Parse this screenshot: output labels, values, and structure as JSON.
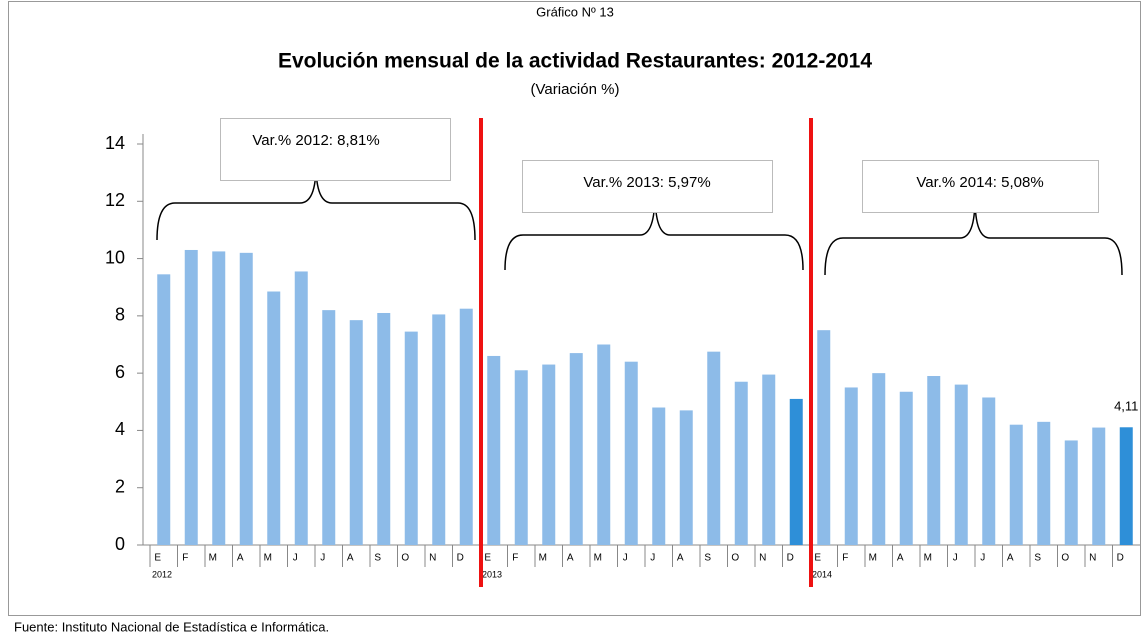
{
  "chart_data": {
    "type": "bar",
    "pretitle": "Gráfico Nº 13",
    "title": "Evolución mensual  de la actividad  Restaurantes: 2012-2014",
    "subtitle": "(Variación %)",
    "categories": [
      "E",
      "F",
      "M",
      "A",
      "M",
      "J",
      "J",
      "A",
      "S",
      "O",
      "N",
      "D",
      "E",
      "F",
      "M",
      "A",
      "M",
      "J",
      "J",
      "A",
      "S",
      "O",
      "N",
      "D",
      "E",
      "F",
      "M",
      "A",
      "M",
      "J",
      "J",
      "A",
      "S",
      "O",
      "N",
      "D"
    ],
    "year_labels": [
      "2012",
      "2013",
      "2014"
    ],
    "values": [
      9.45,
      10.3,
      10.25,
      10.2,
      8.85,
      9.55,
      8.2,
      7.85,
      8.1,
      7.45,
      8.05,
      8.25,
      6.6,
      6.1,
      6.3,
      6.7,
      7.0,
      6.4,
      4.8,
      4.7,
      6.75,
      5.7,
      5.95,
      5.1,
      7.5,
      5.5,
      6.0,
      5.35,
      5.9,
      5.6,
      5.15,
      4.2,
      4.3,
      3.65,
      4.1,
      4.11
    ],
    "value_labels": [
      null,
      null,
      null,
      null,
      null,
      null,
      null,
      null,
      null,
      null,
      null,
      null,
      null,
      null,
      null,
      null,
      null,
      null,
      null,
      null,
      null,
      null,
      null,
      null,
      null,
      null,
      null,
      null,
      null,
      null,
      null,
      null,
      null,
      null,
      null,
      "4,11"
    ],
    "colors": [
      "#8dbbe8",
      "#8dbbe8",
      "#8dbbe8",
      "#8dbbe8",
      "#8dbbe8",
      "#8dbbe8",
      "#8dbbe8",
      "#8dbbe8",
      "#8dbbe8",
      "#8dbbe8",
      "#8dbbe8",
      "#8dbbe8",
      "#8dbbe8",
      "#8dbbe8",
      "#8dbbe8",
      "#8dbbe8",
      "#8dbbe8",
      "#8dbbe8",
      "#8dbbe8",
      "#8dbbe8",
      "#8dbbe8",
      "#8dbbe8",
      "#8dbbe8",
      "#2e8fd8",
      "#8dbbe8",
      "#8dbbe8",
      "#8dbbe8",
      "#8dbbe8",
      "#8dbbe8",
      "#8dbbe8",
      "#8dbbe8",
      "#8dbbe8",
      "#8dbbe8",
      "#8dbbe8",
      "#8dbbe8",
      "#2e8fd8"
    ],
    "ylim": [
      0,
      14
    ],
    "yticks": [
      0,
      2,
      4,
      6,
      8,
      10,
      12,
      14
    ],
    "annotations": [
      "Var.% 2012: 8,81%",
      "Var.% 2013: 5,97%",
      "Var.% 2014: 5,08%"
    ],
    "source": "Fuente: Instituto Nacional de Estadística e Informática."
  }
}
